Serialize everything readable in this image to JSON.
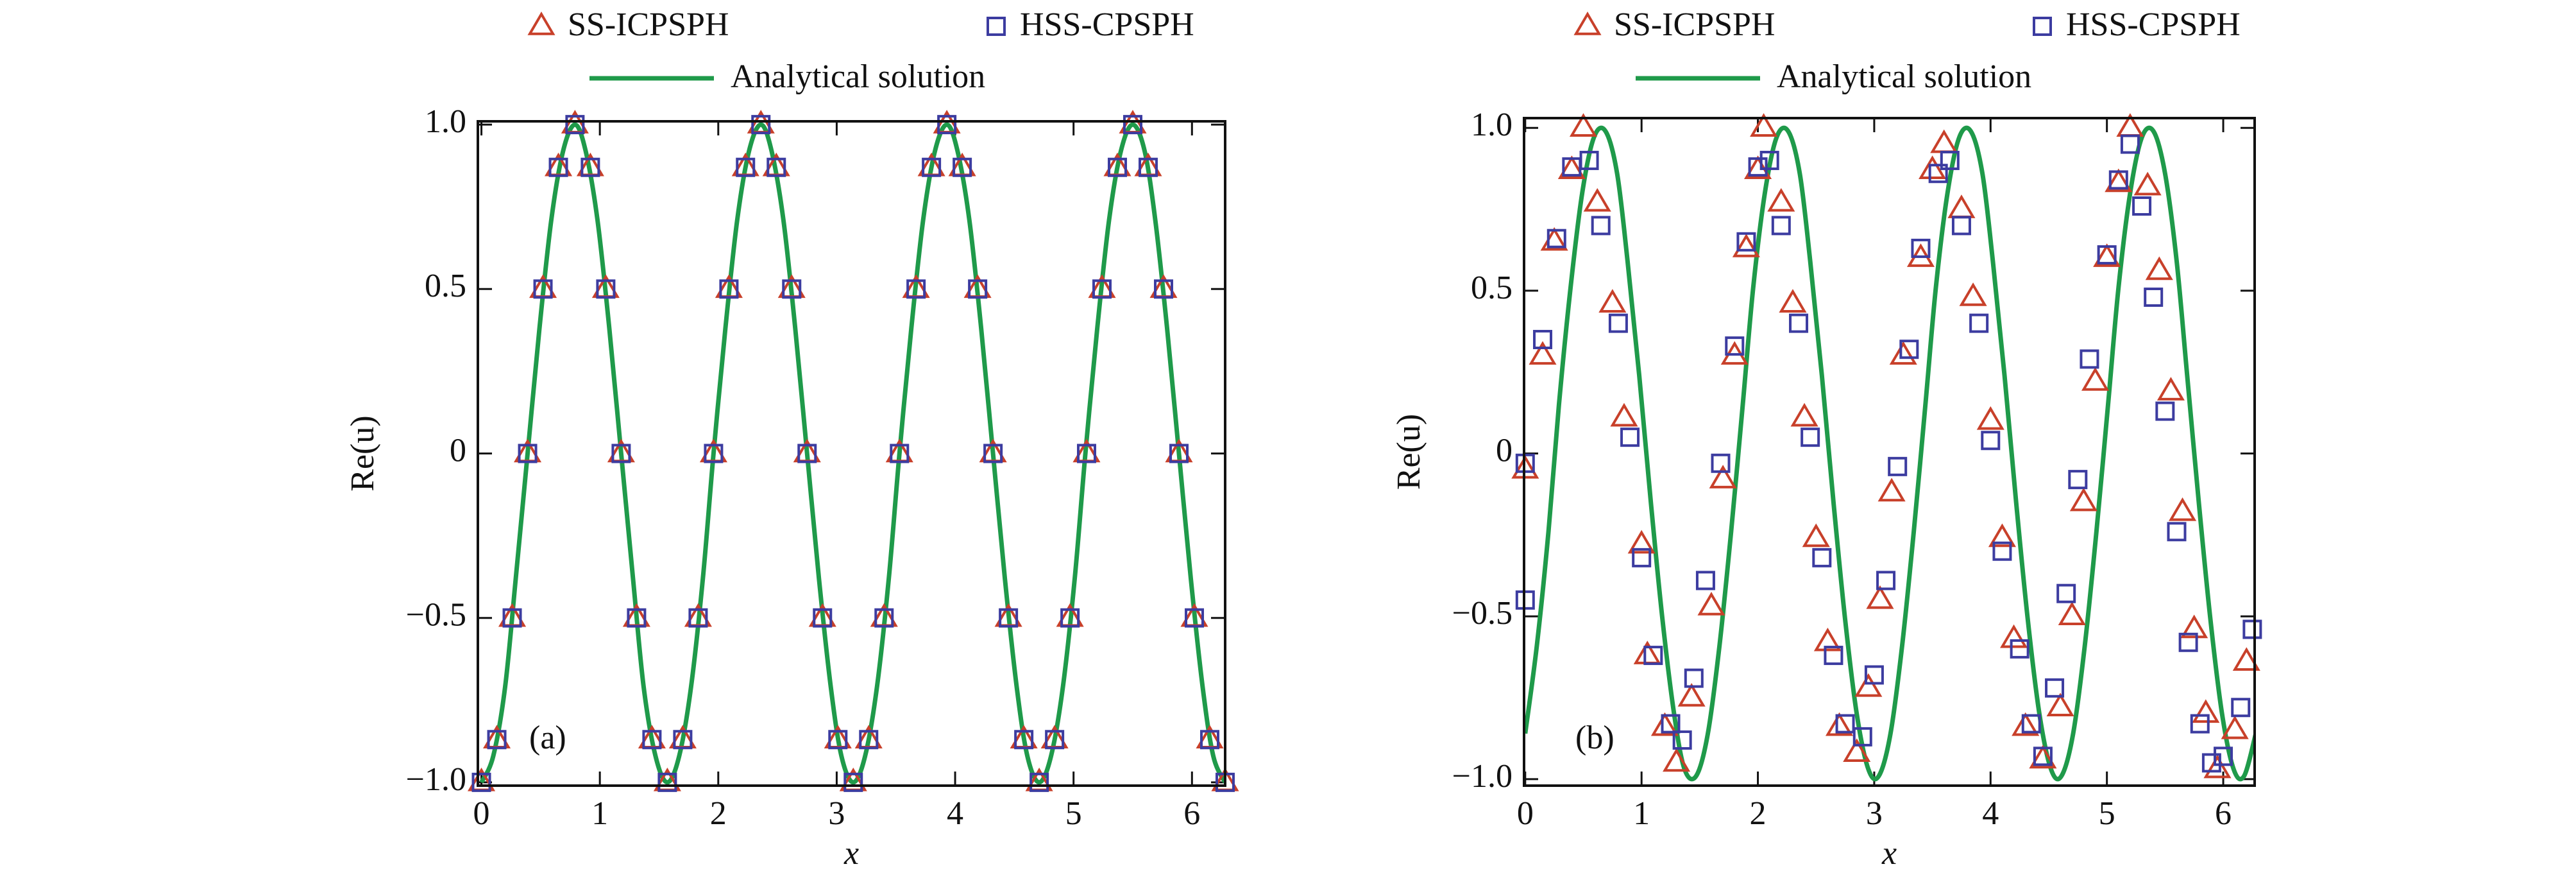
{
  "chart_data": [
    {
      "type": "scatter",
      "panel_label": "(a)",
      "x_label": "x",
      "y_label": "Re(u)",
      "xlim": [
        -0.03,
        6.28
      ],
      "ylim": [
        -1.01,
        1.01
      ],
      "xticks": [
        0,
        1,
        2,
        3,
        4,
        5,
        6
      ],
      "yticks": [
        {
          "value": -1,
          "label": "−1.0"
        },
        {
          "value": -0.5,
          "label": "−0.5"
        },
        0,
        0.5,
        {
          "value": 1,
          "label": "1.0"
        }
      ],
      "series": [
        {
          "name": "SS-ICPSPH",
          "color": "#c8402a",
          "mode": "markers",
          "marker": "triangle",
          "x": [
            0,
            0.13,
            0.26,
            0.39,
            0.52,
            0.65,
            0.79,
            0.92,
            1.05,
            1.18,
            1.31,
            1.44,
            1.57,
            1.7,
            1.83,
            1.96,
            2.09,
            2.23,
            2.36,
            2.49,
            2.62,
            2.75,
            2.88,
            3.01,
            3.14,
            3.27,
            3.4,
            3.53,
            3.67,
            3.8,
            3.93,
            4.06,
            4.19,
            4.32,
            4.45,
            4.58,
            4.71,
            4.84,
            4.97,
            5.11,
            5.24,
            5.37,
            5.5,
            5.63,
            5.76,
            5.89,
            6.02,
            6.15,
            6.28
          ],
          "values": [
            -1,
            -0.87,
            -0.5,
            0,
            0.5,
            0.87,
            1,
            0.87,
            0.5,
            0,
            -0.5,
            -0.87,
            -1,
            -0.87,
            -0.5,
            0,
            0.5,
            0.87,
            1,
            0.87,
            0.5,
            0,
            -0.5,
            -0.87,
            -1,
            -0.87,
            -0.5,
            0,
            0.5,
            0.87,
            1,
            0.87,
            0.5,
            0,
            -0.5,
            -0.87,
            -1,
            -0.87,
            -0.5,
            0,
            0.5,
            0.87,
            1,
            0.87,
            0.5,
            0,
            -0.5,
            -0.87,
            -1
          ]
        },
        {
          "name": "HSS-CPSPH",
          "color": "#3c3ca0",
          "mode": "markers",
          "marker": "square",
          "x": [
            0,
            0.13,
            0.26,
            0.39,
            0.52,
            0.65,
            0.79,
            0.92,
            1.05,
            1.18,
            1.31,
            1.44,
            1.57,
            1.7,
            1.83,
            1.96,
            2.09,
            2.23,
            2.36,
            2.49,
            2.62,
            2.75,
            2.88,
            3.01,
            3.14,
            3.27,
            3.4,
            3.53,
            3.67,
            3.8,
            3.93,
            4.06,
            4.19,
            4.32,
            4.45,
            4.58,
            4.71,
            4.84,
            4.97,
            5.11,
            5.24,
            5.37,
            5.5,
            5.63,
            5.76,
            5.89,
            6.02,
            6.15,
            6.28
          ],
          "values": [
            -1,
            -0.87,
            -0.5,
            0,
            0.5,
            0.87,
            1,
            0.87,
            0.5,
            0,
            -0.5,
            -0.87,
            -1,
            -0.87,
            -0.5,
            0,
            0.5,
            0.87,
            1,
            0.87,
            0.5,
            0,
            -0.5,
            -0.87,
            -1,
            -0.87,
            -0.5,
            0,
            0.5,
            0.87,
            1,
            0.87,
            0.5,
            0,
            -0.5,
            -0.87,
            -1,
            -0.87,
            -0.5,
            0,
            0.5,
            0.87,
            1,
            0.87,
            0.5,
            0,
            -0.5,
            -0.87,
            -1
          ]
        },
        {
          "name": "Analytical solution",
          "color": "#1f9a4a",
          "mode": "lines",
          "x": [
            0,
            0.1,
            0.2,
            0.29,
            0.39,
            0.49,
            0.59,
            0.69,
            0.79,
            0.88,
            0.98,
            1.08,
            1.18,
            1.28,
            1.37,
            1.47,
            1.57,
            1.67,
            1.77,
            1.87,
            1.96,
            2.06,
            2.16,
            2.26,
            2.36,
            2.45,
            2.55,
            2.65,
            2.75,
            2.85,
            2.95,
            3.04,
            3.14,
            3.24,
            3.34,
            3.44,
            3.53,
            3.63,
            3.73,
            3.83,
            3.93,
            4.02,
            4.12,
            4.22,
            4.32,
            4.42,
            4.52,
            4.61,
            4.71,
            4.81,
            4.91,
            5.01,
            5.1,
            5.2,
            5.3,
            5.4,
            5.5,
            5.6,
            5.69,
            5.79,
            5.89,
            5.99,
            6.09,
            6.18,
            6.28
          ],
          "values": [
            -1,
            -0.92,
            -0.71,
            -0.38,
            0,
            0.38,
            0.71,
            0.92,
            1,
            0.92,
            0.71,
            0.38,
            0,
            -0.38,
            -0.71,
            -0.92,
            -1,
            -0.92,
            -0.71,
            -0.38,
            0,
            0.38,
            0.71,
            0.92,
            1,
            0.92,
            0.71,
            0.38,
            0,
            -0.38,
            -0.71,
            -0.92,
            -1,
            -0.92,
            -0.71,
            -0.38,
            0,
            0.38,
            0.71,
            0.92,
            1,
            0.92,
            0.71,
            0.38,
            0,
            -0.38,
            -0.71,
            -0.92,
            -1,
            -0.92,
            -0.71,
            -0.38,
            0,
            0.38,
            0.71,
            0.92,
            1,
            0.92,
            0.71,
            0.38,
            0,
            -0.38,
            -0.71,
            -0.92,
            -1
          ]
        }
      ]
    },
    {
      "type": "scatter",
      "panel_label": "(b)",
      "x_label": "x",
      "y_label": "Re(u)",
      "xlim": [
        -0.01,
        6.27
      ],
      "ylim": [
        -1.02,
        1.03
      ],
      "xticks": [
        0,
        1,
        2,
        3,
        4,
        5,
        6
      ],
      "yticks": [
        {
          "value": -1,
          "label": "−1.0"
        },
        {
          "value": -0.5,
          "label": "−0.5"
        },
        0,
        0.5,
        {
          "value": 1,
          "label": "1.0"
        }
      ],
      "series": [
        {
          "name": "SS-ICPSPH",
          "color": "#c8402a",
          "mode": "markers",
          "marker": "triangle",
          "x": [
            0,
            0.15,
            0.25,
            0.4,
            0.5,
            0.62,
            0.75,
            0.85,
            1.0,
            1.05,
            1.2,
            1.3,
            1.43,
            1.6,
            1.7,
            1.8,
            1.9,
            2.0,
            2.05,
            2.2,
            2.3,
            2.4,
            2.5,
            2.6,
            2.7,
            2.85,
            2.95,
            3.05,
            3.15,
            3.25,
            3.4,
            3.5,
            3.6,
            3.75,
            3.85,
            4.0,
            4.1,
            4.2,
            4.3,
            4.45,
            4.6,
            4.7,
            4.8,
            4.9,
            5.0,
            5.1,
            5.2,
            5.35,
            5.45,
            5.55,
            5.65,
            5.75,
            5.85,
            5.95,
            6.1,
            6.2
          ],
          "values": [
            -0.05,
            0.3,
            0.65,
            0.87,
            1.0,
            0.77,
            0.46,
            0.11,
            -0.28,
            -0.62,
            -0.84,
            -0.95,
            -0.75,
            -0.47,
            -0.08,
            0.3,
            0.63,
            0.87,
            1.0,
            0.77,
            0.46,
            0.11,
            -0.26,
            -0.58,
            -0.84,
            -0.92,
            -0.72,
            -0.45,
            -0.12,
            0.3,
            0.6,
            0.87,
            0.95,
            0.75,
            0.48,
            0.1,
            -0.26,
            -0.57,
            -0.84,
            -0.94,
            -0.78,
            -0.5,
            -0.15,
            0.22,
            0.6,
            0.83,
            1.0,
            0.82,
            0.56,
            0.19,
            -0.18,
            -0.54,
            -0.8,
            -0.97,
            -0.85,
            -0.64
          ]
        },
        {
          "name": "HSS-CPSPH",
          "color": "#3c3ca0",
          "mode": "markers",
          "marker": "square",
          "x": [
            0,
            0,
            0.15,
            0.27,
            0.4,
            0.55,
            0.65,
            0.8,
            0.9,
            1.0,
            1.1,
            1.25,
            1.35,
            1.45,
            1.55,
            1.68,
            1.8,
            1.9,
            2.0,
            2.1,
            2.2,
            2.35,
            2.45,
            2.55,
            2.65,
            2.75,
            2.9,
            3.0,
            3.1,
            3.2,
            3.3,
            3.4,
            3.55,
            3.65,
            3.75,
            3.9,
            4.0,
            4.1,
            4.25,
            4.35,
            4.45,
            4.55,
            4.65,
            4.75,
            4.85,
            5.0,
            5.1,
            5.2,
            5.3,
            5.4,
            5.5,
            5.6,
            5.7,
            5.8,
            5.9,
            6.0,
            6.15,
            6.25
          ],
          "values": [
            -0.45,
            -0.03,
            0.35,
            0.66,
            0.88,
            0.9,
            0.7,
            0.4,
            0.05,
            -0.32,
            -0.62,
            -0.83,
            -0.88,
            -0.69,
            -0.39,
            -0.03,
            0.33,
            0.65,
            0.88,
            0.9,
            0.7,
            0.4,
            0.05,
            -0.32,
            -0.62,
            -0.83,
            -0.87,
            -0.68,
            -0.39,
            -0.04,
            0.32,
            0.63,
            0.86,
            0.9,
            0.7,
            0.4,
            0.04,
            -0.3,
            -0.6,
            -0.83,
            -0.93,
            -0.72,
            -0.43,
            -0.08,
            0.29,
            0.61,
            0.84,
            0.95,
            0.76,
            0.48,
            0.13,
            -0.24,
            -0.58,
            -0.83,
            -0.95,
            -0.93,
            -0.78,
            -0.54
          ]
        },
        {
          "name": "Analytical solution",
          "color": "#1f9a4a",
          "mode": "lines",
          "x": [
            0,
            0.1,
            0.2,
            0.29,
            0.39,
            0.49,
            0.59,
            0.69,
            0.79,
            0.88,
            0.98,
            1.08,
            1.18,
            1.28,
            1.37,
            1.47,
            1.57,
            1.67,
            1.77,
            1.87,
            1.96,
            2.06,
            2.16,
            2.26,
            2.36,
            2.45,
            2.55,
            2.65,
            2.75,
            2.85,
            2.95,
            3.04,
            3.14,
            3.24,
            3.34,
            3.44,
            3.53,
            3.63,
            3.73,
            3.83,
            3.93,
            4.02,
            4.12,
            4.22,
            4.32,
            4.42,
            4.52,
            4.61,
            4.71,
            4.81,
            4.91,
            5.01,
            5.1,
            5.2,
            5.3,
            5.4,
            5.5,
            5.6,
            5.69,
            5.79,
            5.89,
            5.99,
            6.09,
            6.18,
            6.28
          ],
          "values": [
            -0.86,
            -0.59,
            -0.24,
            0.15,
            0.51,
            0.8,
            0.97,
            0.99,
            0.86,
            0.59,
            0.24,
            -0.15,
            -0.51,
            -0.8,
            -0.97,
            -0.99,
            -0.86,
            -0.59,
            -0.24,
            0.15,
            0.51,
            0.8,
            0.97,
            0.99,
            0.86,
            0.59,
            0.24,
            -0.15,
            -0.51,
            -0.8,
            -0.97,
            -0.99,
            -0.86,
            -0.59,
            -0.24,
            0.15,
            0.51,
            0.8,
            0.97,
            0.99,
            0.86,
            0.59,
            0.24,
            -0.15,
            -0.51,
            -0.8,
            -0.97,
            -0.99,
            -0.86,
            -0.59,
            -0.24,
            0.15,
            0.51,
            0.8,
            0.97,
            0.99,
            0.86,
            0.59,
            0.24,
            -0.15,
            -0.51,
            -0.8,
            -0.97,
            -0.99,
            -0.86
          ]
        }
      ]
    }
  ]
}
